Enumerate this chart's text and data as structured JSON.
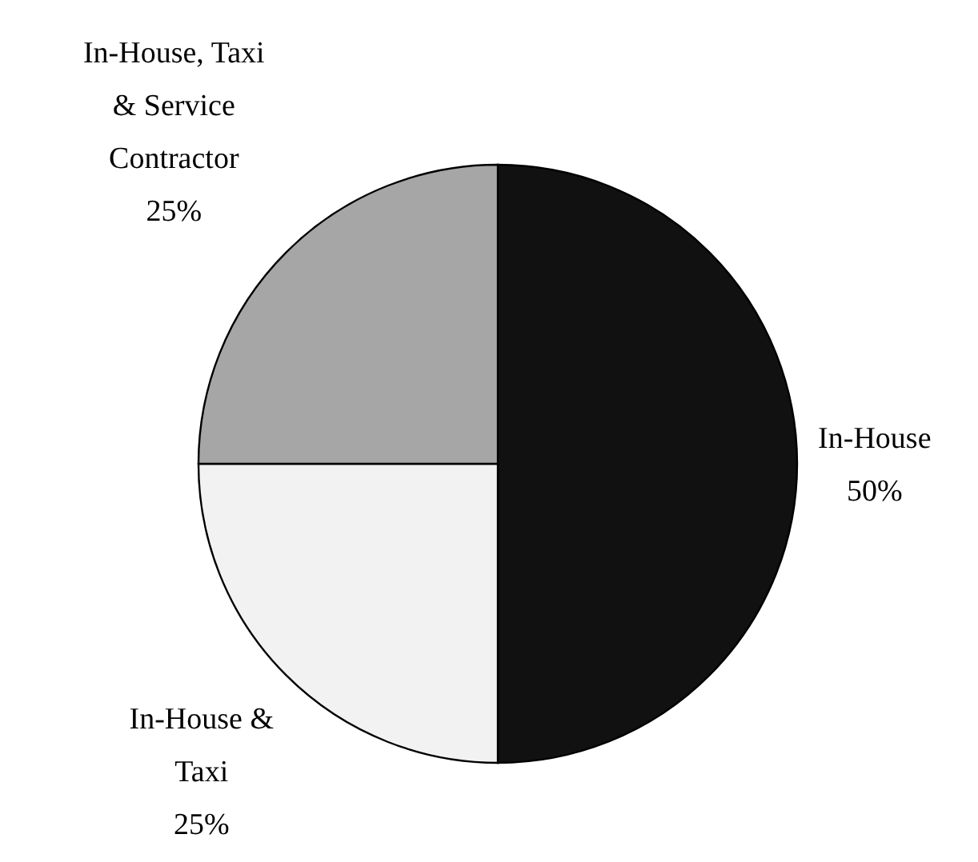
{
  "chart_data": {
    "type": "pie",
    "categories": [
      "In-House",
      "In-House & Taxi",
      "In-House, Taxi & Service Contractor"
    ],
    "values": [
      50,
      25,
      25
    ],
    "colors": [
      "#111111",
      "#f2f2f2",
      "#a6a6a6"
    ],
    "value_labels": [
      "50%",
      "25%",
      "25%"
    ],
    "legend": false
  }
}
